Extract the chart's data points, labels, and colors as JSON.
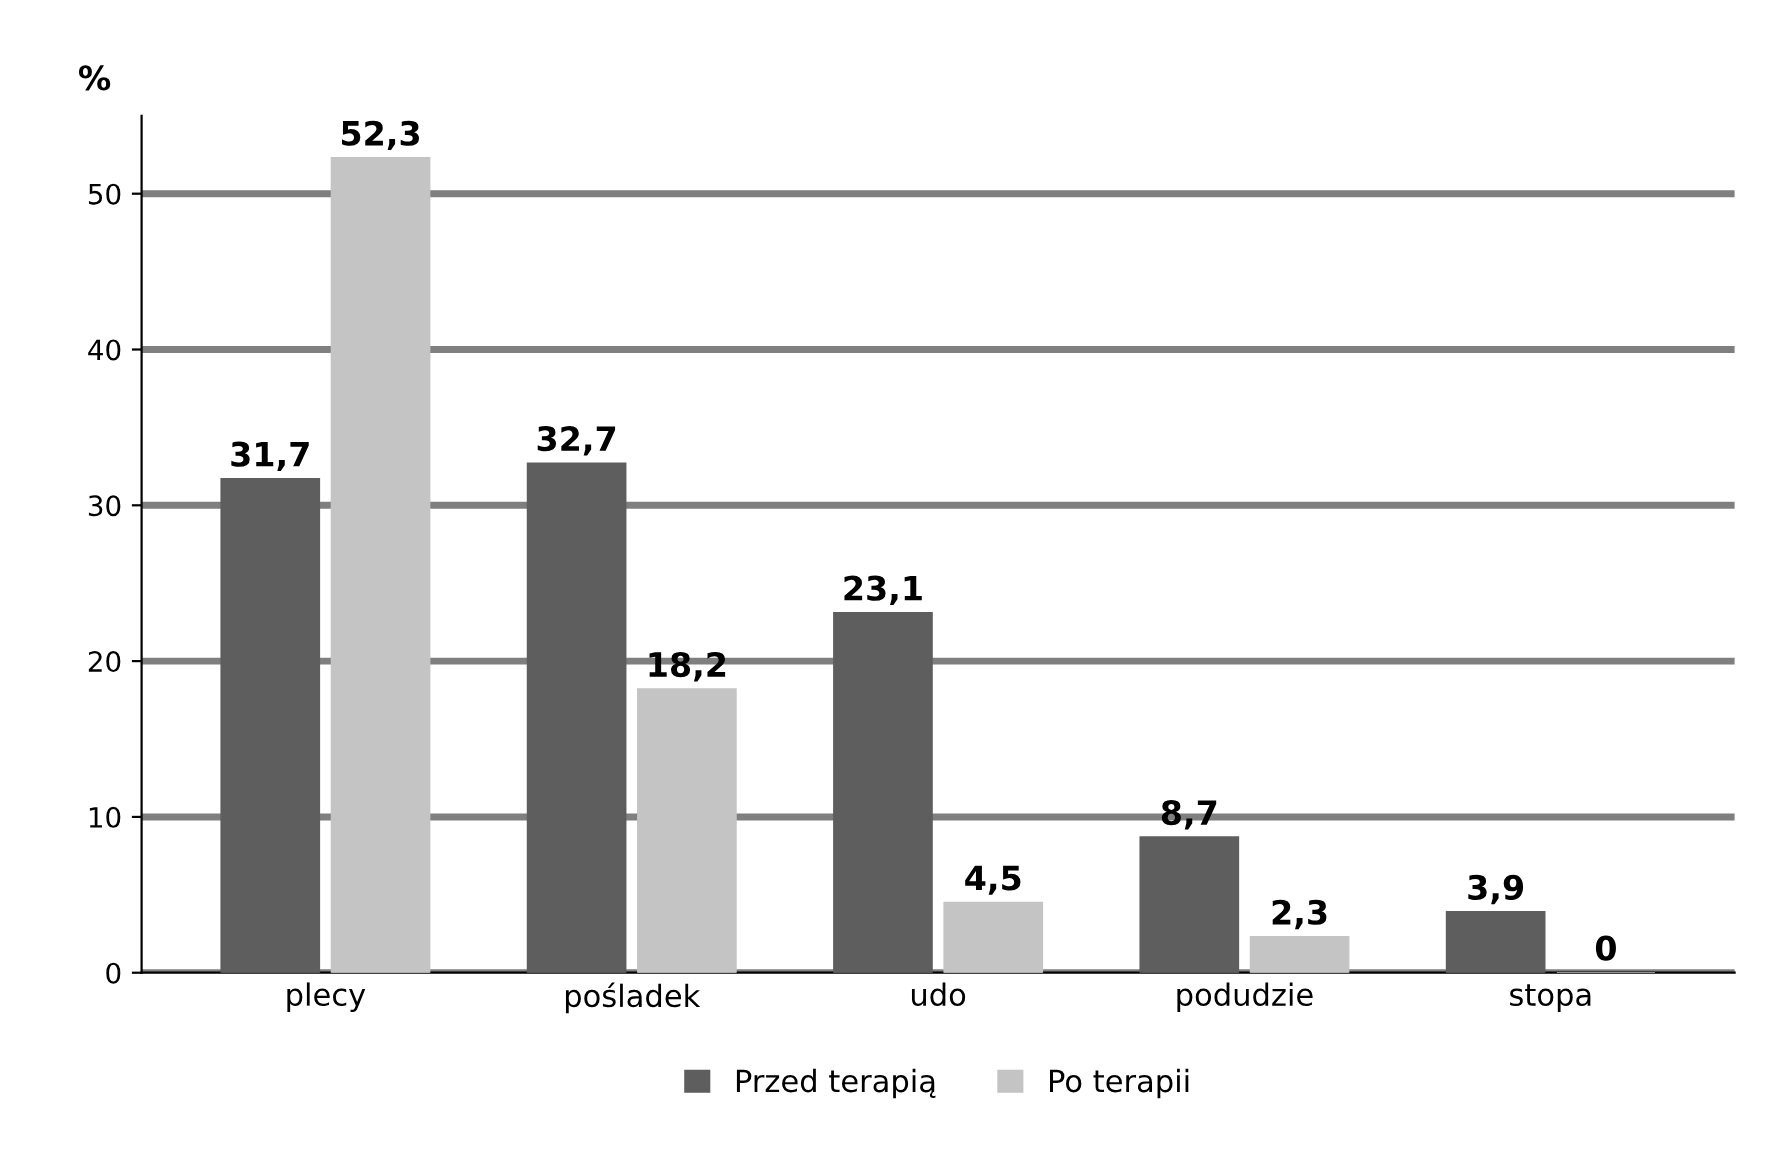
{
  "chart_data": {
    "type": "bar",
    "ylabel": "%",
    "categories": [
      "plecy",
      "pośladek",
      "udo",
      "podudzie",
      "stopa"
    ],
    "series": [
      {
        "name": "Przed terapią",
        "color": "#5e5e5e",
        "values": [
          31.7,
          32.7,
          23.1,
          8.7,
          3.9
        ],
        "value_labels": [
          "31,7",
          "32,7",
          "23,1",
          "8,7",
          "3,9"
        ]
      },
      {
        "name": "Po terapii",
        "color": "#c4c4c4",
        "values": [
          52.3,
          18.2,
          4.5,
          2.3,
          0
        ],
        "value_labels": [
          "52,3",
          "18,2",
          "4,5",
          "2,3",
          "0"
        ]
      }
    ],
    "ylim": [
      0,
      55
    ],
    "yticks": [
      0,
      10,
      20,
      30,
      40,
      50
    ],
    "grid": "y",
    "legend": "bottom"
  }
}
